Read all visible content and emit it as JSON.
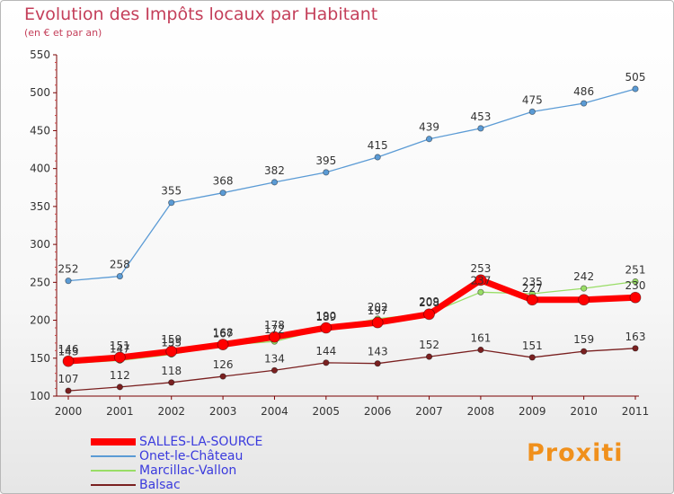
{
  "header": {
    "title": "Evolution des Impôts locaux par Habitant",
    "subtitle": "(en € et par an)"
  },
  "logo": {
    "text": "Proxiti"
  },
  "colors": {
    "title": "#c43f5a",
    "axis": "#7a0000",
    "legend_text": "#3a3add"
  },
  "chart_data": {
    "type": "line",
    "title": "Evolution des Impôts locaux par Habitant",
    "subtitle": "(en € et par an)",
    "xlabel": "",
    "ylabel": "",
    "x": [
      "2000",
      "2001",
      "2002",
      "2003",
      "2004",
      "2005",
      "2006",
      "2007",
      "2008",
      "2009",
      "2010",
      "2011"
    ],
    "ylim": [
      100,
      550
    ],
    "yticks": [
      100,
      150,
      200,
      250,
      300,
      350,
      400,
      450,
      500,
      550
    ],
    "grid": false,
    "legend_position": "bottom-left",
    "series": [
      {
        "name": "SALLES-LA-SOURCE",
        "color": "#ff0000",
        "values": [
          146,
          151,
          159,
          168,
          178,
          190,
          197,
          208,
          253,
          227,
          227,
          230
        ],
        "labels": [
          "146",
          "151",
          "159",
          "168",
          "178",
          "190",
          "197",
          "208",
          "253",
          "227",
          "",
          "230"
        ]
      },
      {
        "name": "Onet-le-Château",
        "color": "#5b9bd5",
        "values": [
          252,
          258,
          355,
          368,
          382,
          395,
          415,
          439,
          453,
          475,
          486,
          505
        ],
        "labels": [
          "252",
          "258",
          "355",
          "368",
          "382",
          "395",
          "415",
          "439",
          "453",
          "475",
          "486",
          "505"
        ]
      },
      {
        "name": "Marcillac-Vallon",
        "color": "#99dd66",
        "values": [
          143,
          147,
          155,
          167,
          172,
          189,
          202,
          209,
          237,
          235,
          242,
          251
        ],
        "labels": [
          "143",
          "147",
          "155",
          "167",
          "172",
          "189",
          "202",
          "209",
          "237",
          "235",
          "242",
          "251"
        ]
      },
      {
        "name": "Balsac",
        "color": "#7a2020",
        "values": [
          107,
          112,
          118,
          126,
          134,
          144,
          143,
          152,
          161,
          151,
          159,
          163
        ],
        "labels": [
          "107",
          "112",
          "118",
          "126",
          "134",
          "144",
          "143",
          "152",
          "161",
          "151",
          "159",
          "163"
        ]
      }
    ]
  }
}
